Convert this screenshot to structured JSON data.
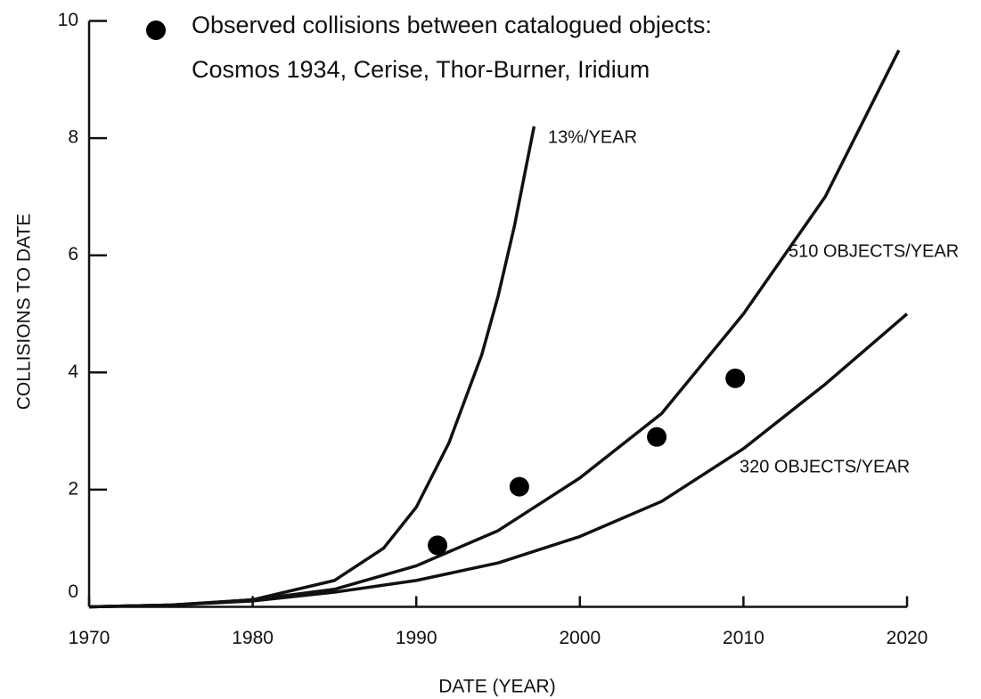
{
  "chart_data": {
    "type": "line",
    "title": "Observed collisions between catalogued objects:",
    "subtitle": "Cosmos 1934, Cerise, Thor-Burner, Iridium",
    "x_label": "DATE (YEAR)",
    "y_label": "COLLISIONS TO DATE",
    "xlim": [
      1970,
      2020
    ],
    "ylim": [
      0,
      10
    ],
    "xticks": [
      1970,
      1980,
      1990,
      2000,
      2010,
      2020
    ],
    "yticks": [
      0,
      2,
      4,
      6,
      8,
      10
    ],
    "series": [
      {
        "name": "13%/YEAR",
        "color": "#111111",
        "x": [
          1970,
          1975,
          1980,
          1985,
          1988,
          1990,
          1992,
          1994,
          1995,
          1996,
          1997.2
        ],
        "values": [
          0,
          0.03,
          0.12,
          0.45,
          1.0,
          1.7,
          2.8,
          4.3,
          5.3,
          6.5,
          8.2
        ]
      },
      {
        "name": "510 OBJECTS/YEAR",
        "color": "#111111",
        "x": [
          1970,
          1975,
          1980,
          1985,
          1990,
          1995,
          2000,
          2005,
          2010,
          2015,
          2019.5
        ],
        "values": [
          0,
          0.03,
          0.12,
          0.3,
          0.7,
          1.3,
          2.2,
          3.3,
          5.0,
          7.0,
          9.5
        ]
      },
      {
        "name": "320 OBJECTS/YEAR",
        "color": "#111111",
        "x": [
          1970,
          1975,
          1980,
          1985,
          1990,
          1995,
          2000,
          2005,
          2010,
          2015,
          2020
        ],
        "values": [
          0,
          0.03,
          0.1,
          0.25,
          0.45,
          0.75,
          1.2,
          1.8,
          2.7,
          3.8,
          5.0
        ]
      },
      {
        "name": "Observed collisions",
        "type": "scatter",
        "color": "#000000",
        "x": [
          1991.3,
          1996.3,
          2004.7,
          2009.5
        ],
        "values": [
          1.05,
          2.05,
          2.9,
          3.9
        ]
      }
    ]
  }
}
